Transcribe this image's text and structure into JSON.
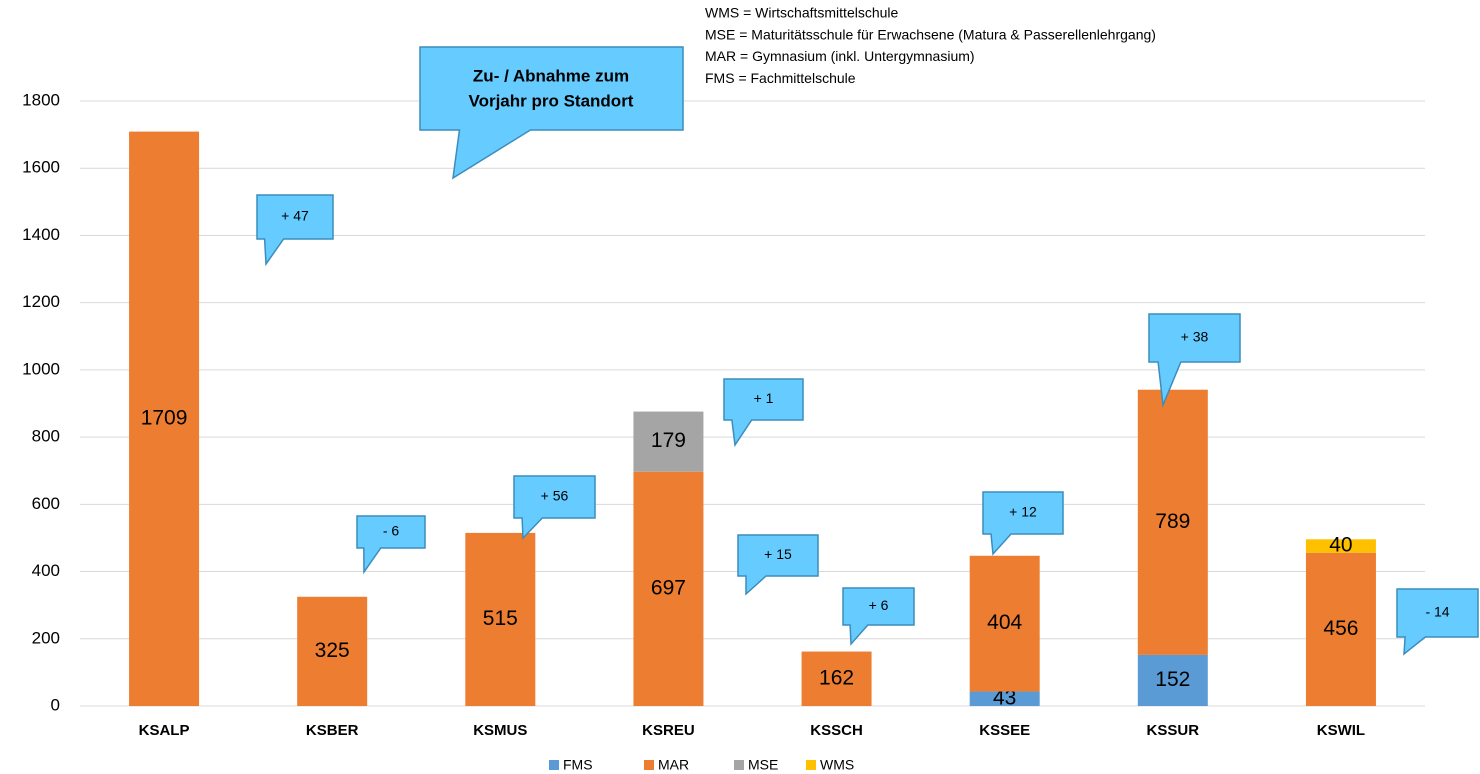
{
  "chart_data": {
    "type": "stacked_bar",
    "categories": [
      "KSALP",
      "KSBER",
      "KSMUS",
      "KSREU",
      "KSSCH",
      "KSSEE",
      "KSSUR",
      "KSWIL"
    ],
    "series": [
      {
        "name": "FMS",
        "color": "#5b9bd5",
        "values": [
          null,
          null,
          null,
          null,
          null,
          43,
          152,
          null
        ]
      },
      {
        "name": "MAR",
        "color": "#ed7d31",
        "values": [
          1709,
          325,
          515,
          697,
          162,
          404,
          789,
          456
        ]
      },
      {
        "name": "MSE",
        "color": "#a5a5a5",
        "values": [
          null,
          null,
          null,
          179,
          null,
          null,
          null,
          null
        ]
      },
      {
        "name": "WMS",
        "color": "#ffc000",
        "values": [
          null,
          null,
          null,
          null,
          null,
          null,
          null,
          40
        ]
      }
    ],
    "ylim": [
      0,
      1800
    ],
    "yticks": [
      0,
      200,
      400,
      600,
      800,
      1000,
      1200,
      1400,
      1600,
      1800
    ],
    "grid": true,
    "legend": "bottom",
    "notes": [
      "WMS = Wirtschaftsmittelschule",
      "MSE = Maturitätsschule für Erwachsene (Matura & Passerellenlehrgang)",
      "MAR = Gymnasium (inkl. Untergymnasium)",
      "FMS = Fachmittelschule"
    ],
    "main_callout": [
      "Zu- / Abnahme zum",
      "Vorjahr pro Standort"
    ],
    "callouts": [
      "+ 47",
      "- 6",
      "+ 56",
      "+ 1",
      "+ 15",
      "+ 6",
      "+ 12",
      "+ 38",
      "- 14"
    ]
  }
}
